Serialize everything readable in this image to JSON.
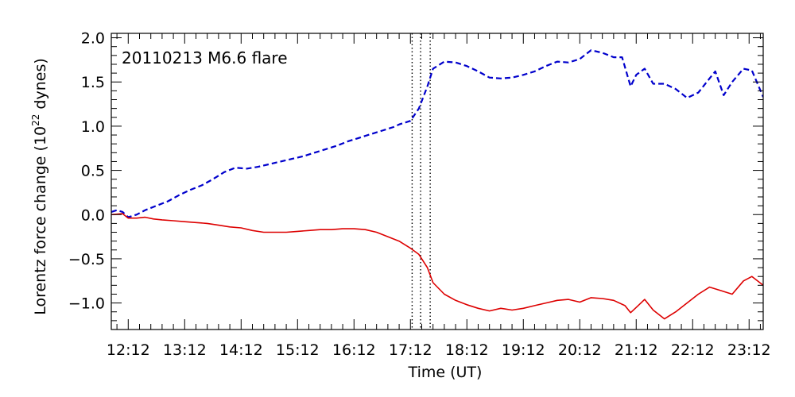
{
  "chart_data": {
    "type": "line",
    "annotation": "20110213 M6.6 flare",
    "xlabel": "Time (UT)",
    "ylabel": {
      "prefix": "Lorentz force change (10",
      "exponent": "22",
      "suffix": " dynes)"
    },
    "xlim": [
      11.9,
      23.45
    ],
    "ylim": [
      -1.3,
      2.05
    ],
    "x_ticks": [
      12.2,
      13.2,
      14.2,
      15.2,
      16.2,
      17.2,
      18.2,
      19.2,
      20.2,
      21.2,
      22.2,
      23.2
    ],
    "x_tick_labels": [
      "12:12",
      "13:12",
      "14:12",
      "15:12",
      "16:12",
      "17:12",
      "18:12",
      "19:12",
      "20:12",
      "21:12",
      "22:12",
      "23:12"
    ],
    "y_ticks": [
      -1.0,
      -0.5,
      0.0,
      0.5,
      1.0,
      1.5,
      2.0
    ],
    "y_tick_labels": [
      "−1.0",
      "−0.5",
      "0.0",
      "0.5",
      "1.0",
      "1.5",
      "2.0"
    ],
    "vlines": [
      17.23,
      17.38,
      17.55
    ],
    "colors": {
      "series_blue": "#0000cc",
      "series_red": "#dd0000",
      "axis": "#000000"
    },
    "series": [
      {
        "style": "dashed",
        "color": "#0000cc",
        "x": [
          11.9,
          12.0,
          12.1,
          12.2,
          12.35,
          12.5,
          12.7,
          12.9,
          13.1,
          13.3,
          13.5,
          13.7,
          13.9,
          14.1,
          14.3,
          14.5,
          14.7,
          14.9,
          15.1,
          15.3,
          15.5,
          15.7,
          15.9,
          16.1,
          16.3,
          16.5,
          16.7,
          16.9,
          17.0,
          17.2,
          17.35,
          17.5,
          17.6,
          17.8,
          18.0,
          18.2,
          18.4,
          18.6,
          18.8,
          19.0,
          19.2,
          19.4,
          19.6,
          19.8,
          20.0,
          20.2,
          20.4,
          20.6,
          20.8,
          20.95,
          21.1,
          21.2,
          21.35,
          21.5,
          21.7,
          21.9,
          22.1,
          22.3,
          22.45,
          22.6,
          22.75,
          22.9,
          23.1,
          23.25,
          23.45
        ],
        "y": [
          0.03,
          0.05,
          0.03,
          -0.03,
          0.0,
          0.05,
          0.1,
          0.15,
          0.22,
          0.28,
          0.33,
          0.4,
          0.48,
          0.53,
          0.52,
          0.54,
          0.57,
          0.6,
          0.63,
          0.66,
          0.7,
          0.74,
          0.78,
          0.83,
          0.87,
          0.91,
          0.95,
          0.99,
          1.02,
          1.06,
          1.2,
          1.45,
          1.65,
          1.73,
          1.72,
          1.68,
          1.62,
          1.55,
          1.54,
          1.55,
          1.58,
          1.62,
          1.68,
          1.73,
          1.72,
          1.76,
          1.86,
          1.83,
          1.78,
          1.78,
          1.45,
          1.58,
          1.65,
          1.48,
          1.48,
          1.42,
          1.32,
          1.38,
          1.5,
          1.62,
          1.35,
          1.5,
          1.65,
          1.63,
          1.33
        ]
      },
      {
        "style": "solid",
        "color": "#dd0000",
        "x": [
          11.9,
          12.1,
          12.2,
          12.35,
          12.5,
          12.65,
          12.8,
          13.0,
          13.2,
          13.4,
          13.6,
          13.8,
          14.0,
          14.2,
          14.4,
          14.6,
          14.8,
          15.0,
          15.2,
          15.4,
          15.6,
          15.8,
          16.0,
          16.2,
          16.4,
          16.6,
          16.8,
          17.0,
          17.2,
          17.35,
          17.5,
          17.6,
          17.8,
          18.0,
          18.2,
          18.4,
          18.6,
          18.8,
          19.0,
          19.2,
          19.4,
          19.6,
          19.8,
          20.0,
          20.2,
          20.4,
          20.6,
          20.8,
          21.0,
          21.1,
          21.2,
          21.35,
          21.5,
          21.7,
          21.9,
          22.1,
          22.3,
          22.5,
          22.7,
          22.9,
          23.1,
          23.25,
          23.45
        ],
        "y": [
          0.0,
          0.01,
          -0.04,
          -0.04,
          -0.03,
          -0.05,
          -0.06,
          -0.07,
          -0.08,
          -0.09,
          -0.1,
          -0.12,
          -0.14,
          -0.15,
          -0.18,
          -0.2,
          -0.2,
          -0.2,
          -0.19,
          -0.18,
          -0.17,
          -0.17,
          -0.16,
          -0.16,
          -0.17,
          -0.2,
          -0.25,
          -0.3,
          -0.38,
          -0.45,
          -0.6,
          -0.77,
          -0.9,
          -0.97,
          -1.02,
          -1.06,
          -1.09,
          -1.06,
          -1.08,
          -1.06,
          -1.03,
          -1.0,
          -0.97,
          -0.96,
          -0.99,
          -0.94,
          -0.95,
          -0.97,
          -1.03,
          -1.11,
          -1.05,
          -0.96,
          -1.08,
          -1.18,
          -1.1,
          -1.0,
          -0.9,
          -0.82,
          -0.86,
          -0.9,
          -0.75,
          -0.7,
          -0.8
        ]
      }
    ]
  }
}
